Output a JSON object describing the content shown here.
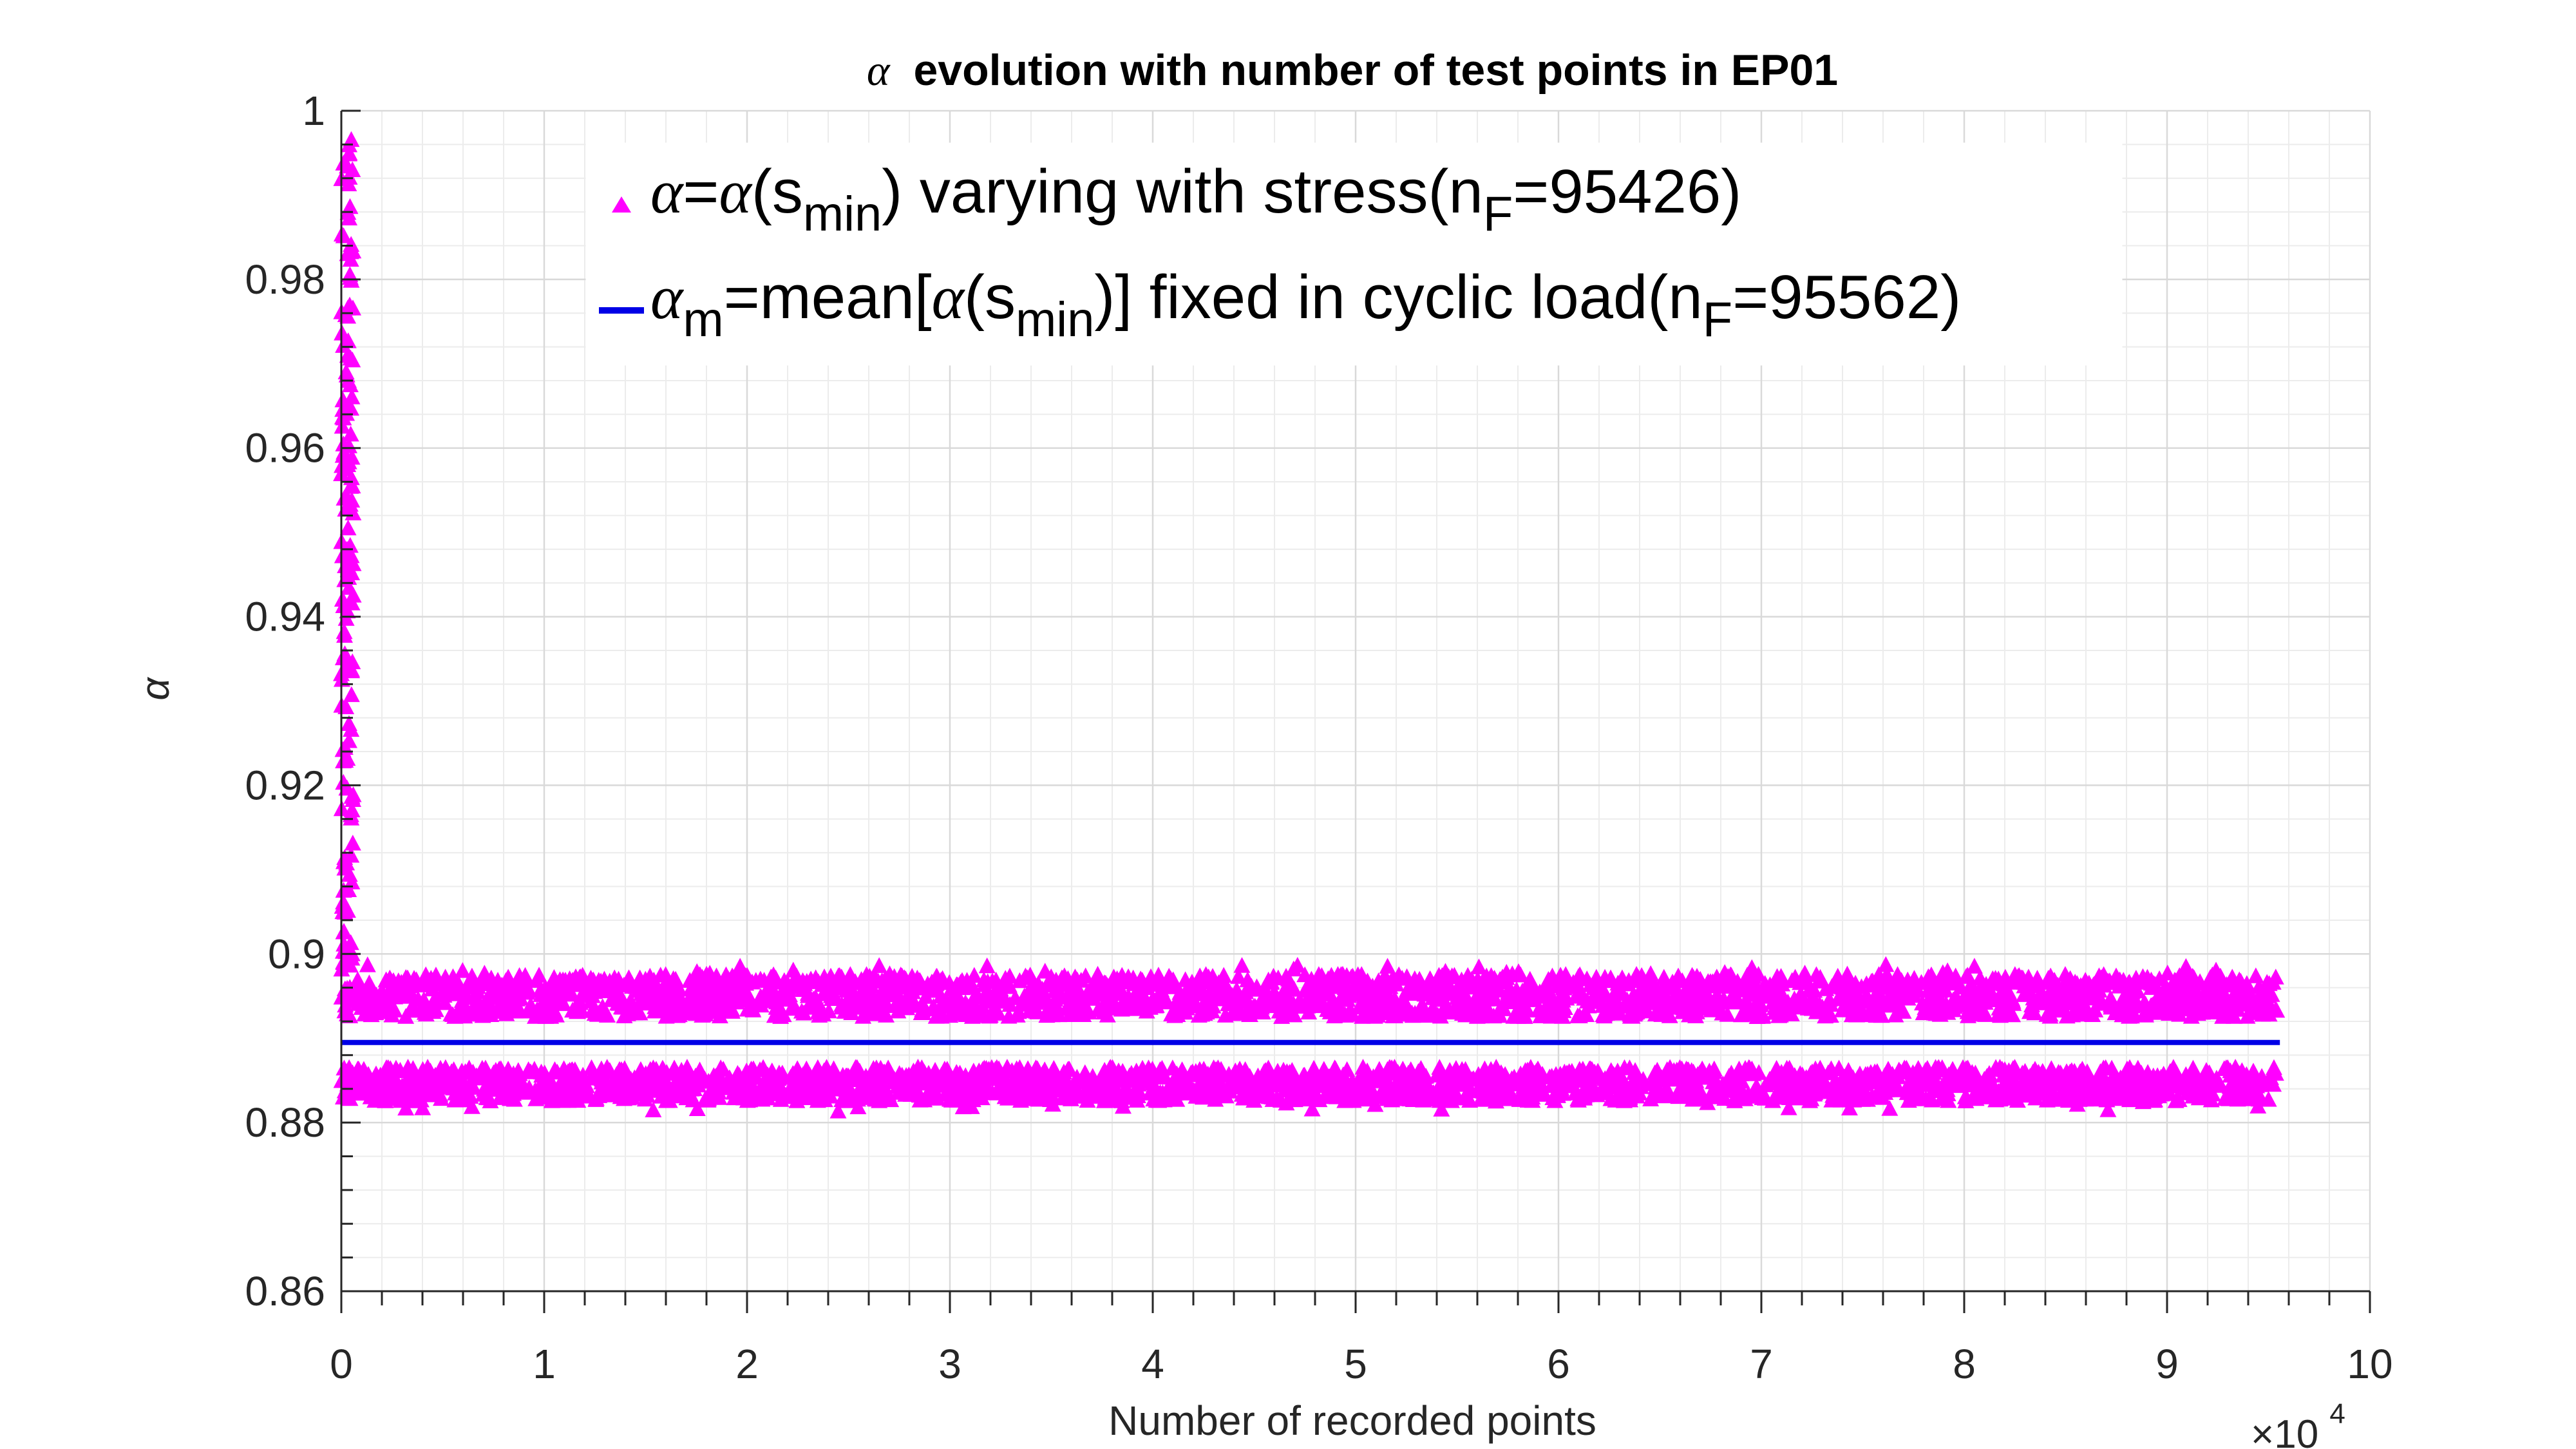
{
  "chart_data": {
    "type": "scatter",
    "title_symbol": "α",
    "title": "evolution with number of test points in EP01",
    "xlabel": "Number of recorded points",
    "ylabel": "α",
    "x_exponent_label": "×10",
    "x_exponent_power": "4",
    "xlim": [
      0,
      100000
    ],
    "ylim": [
      0.86,
      1.0
    ],
    "x_ticks": [
      "0",
      "1",
      "2",
      "3",
      "4",
      "5",
      "6",
      "7",
      "8",
      "9",
      "10"
    ],
    "y_ticks": [
      "0.86",
      "0.88",
      "0.9",
      "0.92",
      "0.94",
      "0.96",
      "0.98",
      "1"
    ],
    "grid": true,
    "minor_grid": true,
    "legend_position": "top",
    "series": [
      {
        "kind": "markers",
        "marker": "triangle",
        "color": "#ff00ff",
        "legend_parts": [
          "α",
          "=",
          "α",
          "(s",
          "min",
          ") varying with stress(n",
          "F",
          "=95426)"
        ],
        "x_range": [
          0,
          95426
        ],
        "upper_band": [
          0.8925,
          0.8975
        ],
        "lower_band": [
          0.8825,
          0.8865
        ],
        "transient_peak": 0.997,
        "transient_x_end": 600
      },
      {
        "kind": "line",
        "color": "#0000e6",
        "legend_parts": [
          "α",
          "m",
          "=mean[",
          "α",
          "(s",
          "min",
          ")] fixed in cyclic load(n",
          "F",
          "=95562)"
        ],
        "x": [
          0,
          95562
        ],
        "y": [
          0.8895,
          0.8895
        ]
      }
    ]
  }
}
